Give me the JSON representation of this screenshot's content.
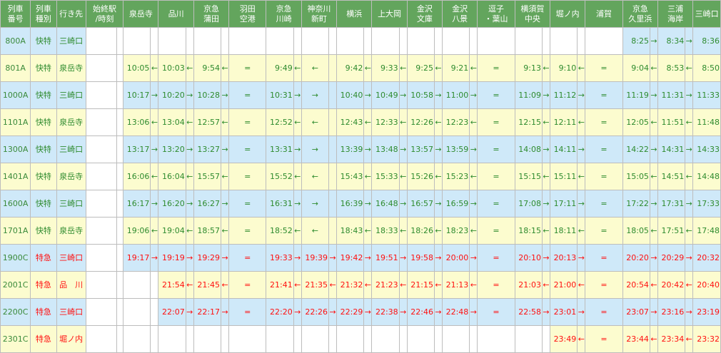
{
  "colors": {
    "header_bg": "#63a55d",
    "row_blue": "#cfe9f9",
    "row_yellow": "#fcfccf",
    "rapid_text": "#2e8b2e",
    "limited_text": "#ff1010"
  },
  "header": {
    "train_no": "列車\n番号",
    "train_type": "列車\n種別",
    "destination": "行き先",
    "start_end": "始終駅\n/時刻",
    "stations": [
      "泉岳寺",
      "品川",
      "京急\n蒲田",
      "羽田\n空港",
      "京急\n川崎",
      "神奈川\n新町",
      "横浜",
      "上大岡",
      "金沢\n文庫",
      "金沢\n八景",
      "逗子\n・葉山",
      "横須賀\n中央",
      "堀ノ内",
      "浦賀",
      "京急\n久里浜",
      "三浦\n海岸",
      "三崎口"
    ]
  },
  "rows": [
    {
      "num": "800A",
      "type": "快特",
      "dest": "三崎口",
      "color": "grn",
      "bg": "blue",
      "cells": [
        [
          "",
          ""
        ],
        [
          "",
          ""
        ],
        [
          "",
          ""
        ],
        [
          "",
          ""
        ],
        [
          "",
          ""
        ],
        [
          "",
          ""
        ],
        [
          "",
          ""
        ],
        [
          "",
          ""
        ],
        [
          "",
          ""
        ],
        [
          "",
          ""
        ],
        [
          "",
          ""
        ],
        [
          "",
          ""
        ],
        [
          "",
          ""
        ],
        [
          "",
          ""
        ],
        [
          "8:25",
          "→"
        ],
        [
          "8:34",
          "→"
        ],
        [
          "8:36",
          ""
        ]
      ]
    },
    {
      "num": "801A",
      "type": "快特",
      "dest": "泉岳寺",
      "color": "grn",
      "bg": "yellow",
      "cells": [
        [
          "10:05",
          "←"
        ],
        [
          "10:03",
          "←"
        ],
        [
          "9:54",
          "←"
        ],
        [
          "=",
          ""
        ],
        [
          "9:49",
          "←"
        ],
        [
          "←",
          ""
        ],
        [
          "9:42",
          "←"
        ],
        [
          "9:33",
          "←"
        ],
        [
          "9:25",
          "←"
        ],
        [
          "9:21",
          "←"
        ],
        [
          "=",
          ""
        ],
        [
          "9:13",
          "←"
        ],
        [
          "9:10",
          "←"
        ],
        [
          "=",
          ""
        ],
        [
          "9:04",
          "←"
        ],
        [
          "8:53",
          "←"
        ],
        [
          "8:50",
          ""
        ]
      ]
    },
    {
      "num": "1000A",
      "type": "快特",
      "dest": "三崎口",
      "color": "grn",
      "bg": "blue",
      "cells": [
        [
          "10:17",
          "→"
        ],
        [
          "10:20",
          "→"
        ],
        [
          "10:28",
          "→"
        ],
        [
          "=",
          ""
        ],
        [
          "10:31",
          "→"
        ],
        [
          "→",
          ""
        ],
        [
          "10:40",
          "→"
        ],
        [
          "10:49",
          "→"
        ],
        [
          "10:58",
          "→"
        ],
        [
          "11:00",
          "→"
        ],
        [
          "=",
          ""
        ],
        [
          "11:09",
          "→"
        ],
        [
          "11:12",
          "→"
        ],
        [
          "=",
          ""
        ],
        [
          "11:19",
          "→"
        ],
        [
          "11:31",
          "→"
        ],
        [
          "11:33",
          ""
        ]
      ]
    },
    {
      "num": "1101A",
      "type": "快特",
      "dest": "泉岳寺",
      "color": "grn",
      "bg": "yellow",
      "cells": [
        [
          "13:06",
          "←"
        ],
        [
          "13:04",
          "←"
        ],
        [
          "12:57",
          "←"
        ],
        [
          "=",
          ""
        ],
        [
          "12:52",
          "←"
        ],
        [
          "←",
          ""
        ],
        [
          "12:43",
          "←"
        ],
        [
          "12:33",
          "←"
        ],
        [
          "12:26",
          "←"
        ],
        [
          "12:23",
          "←"
        ],
        [
          "=",
          ""
        ],
        [
          "12:15",
          "←"
        ],
        [
          "12:11",
          "←"
        ],
        [
          "=",
          ""
        ],
        [
          "12:05",
          "←"
        ],
        [
          "11:51",
          "←"
        ],
        [
          "11:48",
          ""
        ]
      ]
    },
    {
      "num": "1300A",
      "type": "快特",
      "dest": "三崎口",
      "color": "grn",
      "bg": "blue",
      "cells": [
        [
          "13:17",
          "→"
        ],
        [
          "13:20",
          "→"
        ],
        [
          "13:27",
          "→"
        ],
        [
          "=",
          ""
        ],
        [
          "13:31",
          "→"
        ],
        [
          "→",
          ""
        ],
        [
          "13:39",
          "→"
        ],
        [
          "13:48",
          "→"
        ],
        [
          "13:57",
          "→"
        ],
        [
          "13:59",
          "→"
        ],
        [
          "=",
          ""
        ],
        [
          "14:08",
          "→"
        ],
        [
          "14:11",
          "→"
        ],
        [
          "=",
          ""
        ],
        [
          "14:22",
          "→"
        ],
        [
          "14:31",
          "→"
        ],
        [
          "14:33",
          ""
        ]
      ]
    },
    {
      "num": "1401A",
      "type": "快特",
      "dest": "泉岳寺",
      "color": "grn",
      "bg": "yellow",
      "cells": [
        [
          "16:06",
          "←"
        ],
        [
          "16:04",
          "←"
        ],
        [
          "15:57",
          "←"
        ],
        [
          "=",
          ""
        ],
        [
          "15:52",
          "←"
        ],
        [
          "←",
          ""
        ],
        [
          "15:43",
          "←"
        ],
        [
          "15:33",
          "←"
        ],
        [
          "15:26",
          "←"
        ],
        [
          "15:23",
          "←"
        ],
        [
          "=",
          ""
        ],
        [
          "15:15",
          "←"
        ],
        [
          "15:11",
          "←"
        ],
        [
          "=",
          ""
        ],
        [
          "15:05",
          "←"
        ],
        [
          "14:51",
          "←"
        ],
        [
          "14:48",
          ""
        ]
      ]
    },
    {
      "num": "1600A",
      "type": "快特",
      "dest": "三崎口",
      "color": "grn",
      "bg": "blue",
      "cells": [
        [
          "16:17",
          "→"
        ],
        [
          "16:20",
          "→"
        ],
        [
          "16:27",
          "→"
        ],
        [
          "=",
          ""
        ],
        [
          "16:31",
          "→"
        ],
        [
          "→",
          ""
        ],
        [
          "16:39",
          "→"
        ],
        [
          "16:48",
          "→"
        ],
        [
          "16:57",
          "→"
        ],
        [
          "16:59",
          "→"
        ],
        [
          "=",
          ""
        ],
        [
          "17:08",
          "→"
        ],
        [
          "17:11",
          "→"
        ],
        [
          "=",
          ""
        ],
        [
          "17:22",
          "→"
        ],
        [
          "17:31",
          "→"
        ],
        [
          "17:33",
          ""
        ]
      ]
    },
    {
      "num": "1701A",
      "type": "快特",
      "dest": "泉岳寺",
      "color": "grn",
      "bg": "yellow",
      "cells": [
        [
          "19:06",
          "←"
        ],
        [
          "19:04",
          "←"
        ],
        [
          "18:57",
          "←"
        ],
        [
          "=",
          ""
        ],
        [
          "18:52",
          "←"
        ],
        [
          "←",
          ""
        ],
        [
          "18:43",
          "←"
        ],
        [
          "18:33",
          "←"
        ],
        [
          "18:26",
          "←"
        ],
        [
          "18:23",
          "←"
        ],
        [
          "=",
          ""
        ],
        [
          "18:15",
          "←"
        ],
        [
          "18:11",
          "←"
        ],
        [
          "=",
          ""
        ],
        [
          "18:05",
          "←"
        ],
        [
          "17:51",
          "←"
        ],
        [
          "17:48",
          ""
        ]
      ]
    },
    {
      "num": "1900C",
      "type": "特急",
      "dest": "三崎口",
      "color": "red",
      "bg": "blue",
      "cells": [
        [
          "19:17",
          "→"
        ],
        [
          "19:19",
          "→"
        ],
        [
          "19:29",
          "→"
        ],
        [
          "=",
          ""
        ],
        [
          "19:33",
          "→"
        ],
        [
          "19:39",
          "→"
        ],
        [
          "19:42",
          "→"
        ],
        [
          "19:51",
          "→"
        ],
        [
          "19:58",
          "→"
        ],
        [
          "20:00",
          "→"
        ],
        [
          "=",
          ""
        ],
        [
          "20:10",
          "→"
        ],
        [
          "20:13",
          "→"
        ],
        [
          "=",
          ""
        ],
        [
          "20:20",
          "→"
        ],
        [
          "20:29",
          "→"
        ],
        [
          "20:32",
          ""
        ]
      ]
    },
    {
      "num": "2001C",
      "type": "特急",
      "dest": "品　川",
      "color": "red",
      "bg": "yellow",
      "cells": [
        [
          "",
          ""
        ],
        [
          "21:54",
          "←"
        ],
        [
          "21:45",
          "←"
        ],
        [
          "=",
          ""
        ],
        [
          "21:41",
          "←"
        ],
        [
          "21:35",
          "←"
        ],
        [
          "21:32",
          "←"
        ],
        [
          "21:23",
          "←"
        ],
        [
          "21:15",
          "←"
        ],
        [
          "21:13",
          "←"
        ],
        [
          "=",
          ""
        ],
        [
          "21:03",
          "←"
        ],
        [
          "21:00",
          "←"
        ],
        [
          "=",
          ""
        ],
        [
          "20:54",
          "←"
        ],
        [
          "20:42",
          "←"
        ],
        [
          "20:40",
          ""
        ]
      ]
    },
    {
      "num": "2200C",
      "type": "特急",
      "dest": "三崎口",
      "color": "red",
      "bg": "blue",
      "cells": [
        [
          "",
          ""
        ],
        [
          "22:07",
          "→"
        ],
        [
          "22:17",
          "→"
        ],
        [
          "=",
          ""
        ],
        [
          "22:20",
          "→"
        ],
        [
          "22:26",
          "→"
        ],
        [
          "22:29",
          "→"
        ],
        [
          "22:38",
          "→"
        ],
        [
          "22:46",
          "→"
        ],
        [
          "22:48",
          "→"
        ],
        [
          "=",
          ""
        ],
        [
          "22:58",
          "→"
        ],
        [
          "23:01",
          "→"
        ],
        [
          "=",
          ""
        ],
        [
          "23:07",
          "→"
        ],
        [
          "23:16",
          "→"
        ],
        [
          "23:19",
          ""
        ]
      ]
    },
    {
      "num": "2301C",
      "type": "特急",
      "dest": "堀ノ内",
      "color": "red",
      "bg": "yellow",
      "cells": [
        [
          "",
          ""
        ],
        [
          "",
          ""
        ],
        [
          "",
          ""
        ],
        [
          "",
          ""
        ],
        [
          "",
          ""
        ],
        [
          "",
          ""
        ],
        [
          "",
          ""
        ],
        [
          "",
          ""
        ],
        [
          "",
          ""
        ],
        [
          "",
          ""
        ],
        [
          "",
          ""
        ],
        [
          "",
          ""
        ],
        [
          "23:49",
          "←"
        ],
        [
          "=",
          ""
        ],
        [
          "23:44",
          "←"
        ],
        [
          "23:34",
          "←"
        ],
        [
          "23:32",
          ""
        ]
      ]
    }
  ]
}
